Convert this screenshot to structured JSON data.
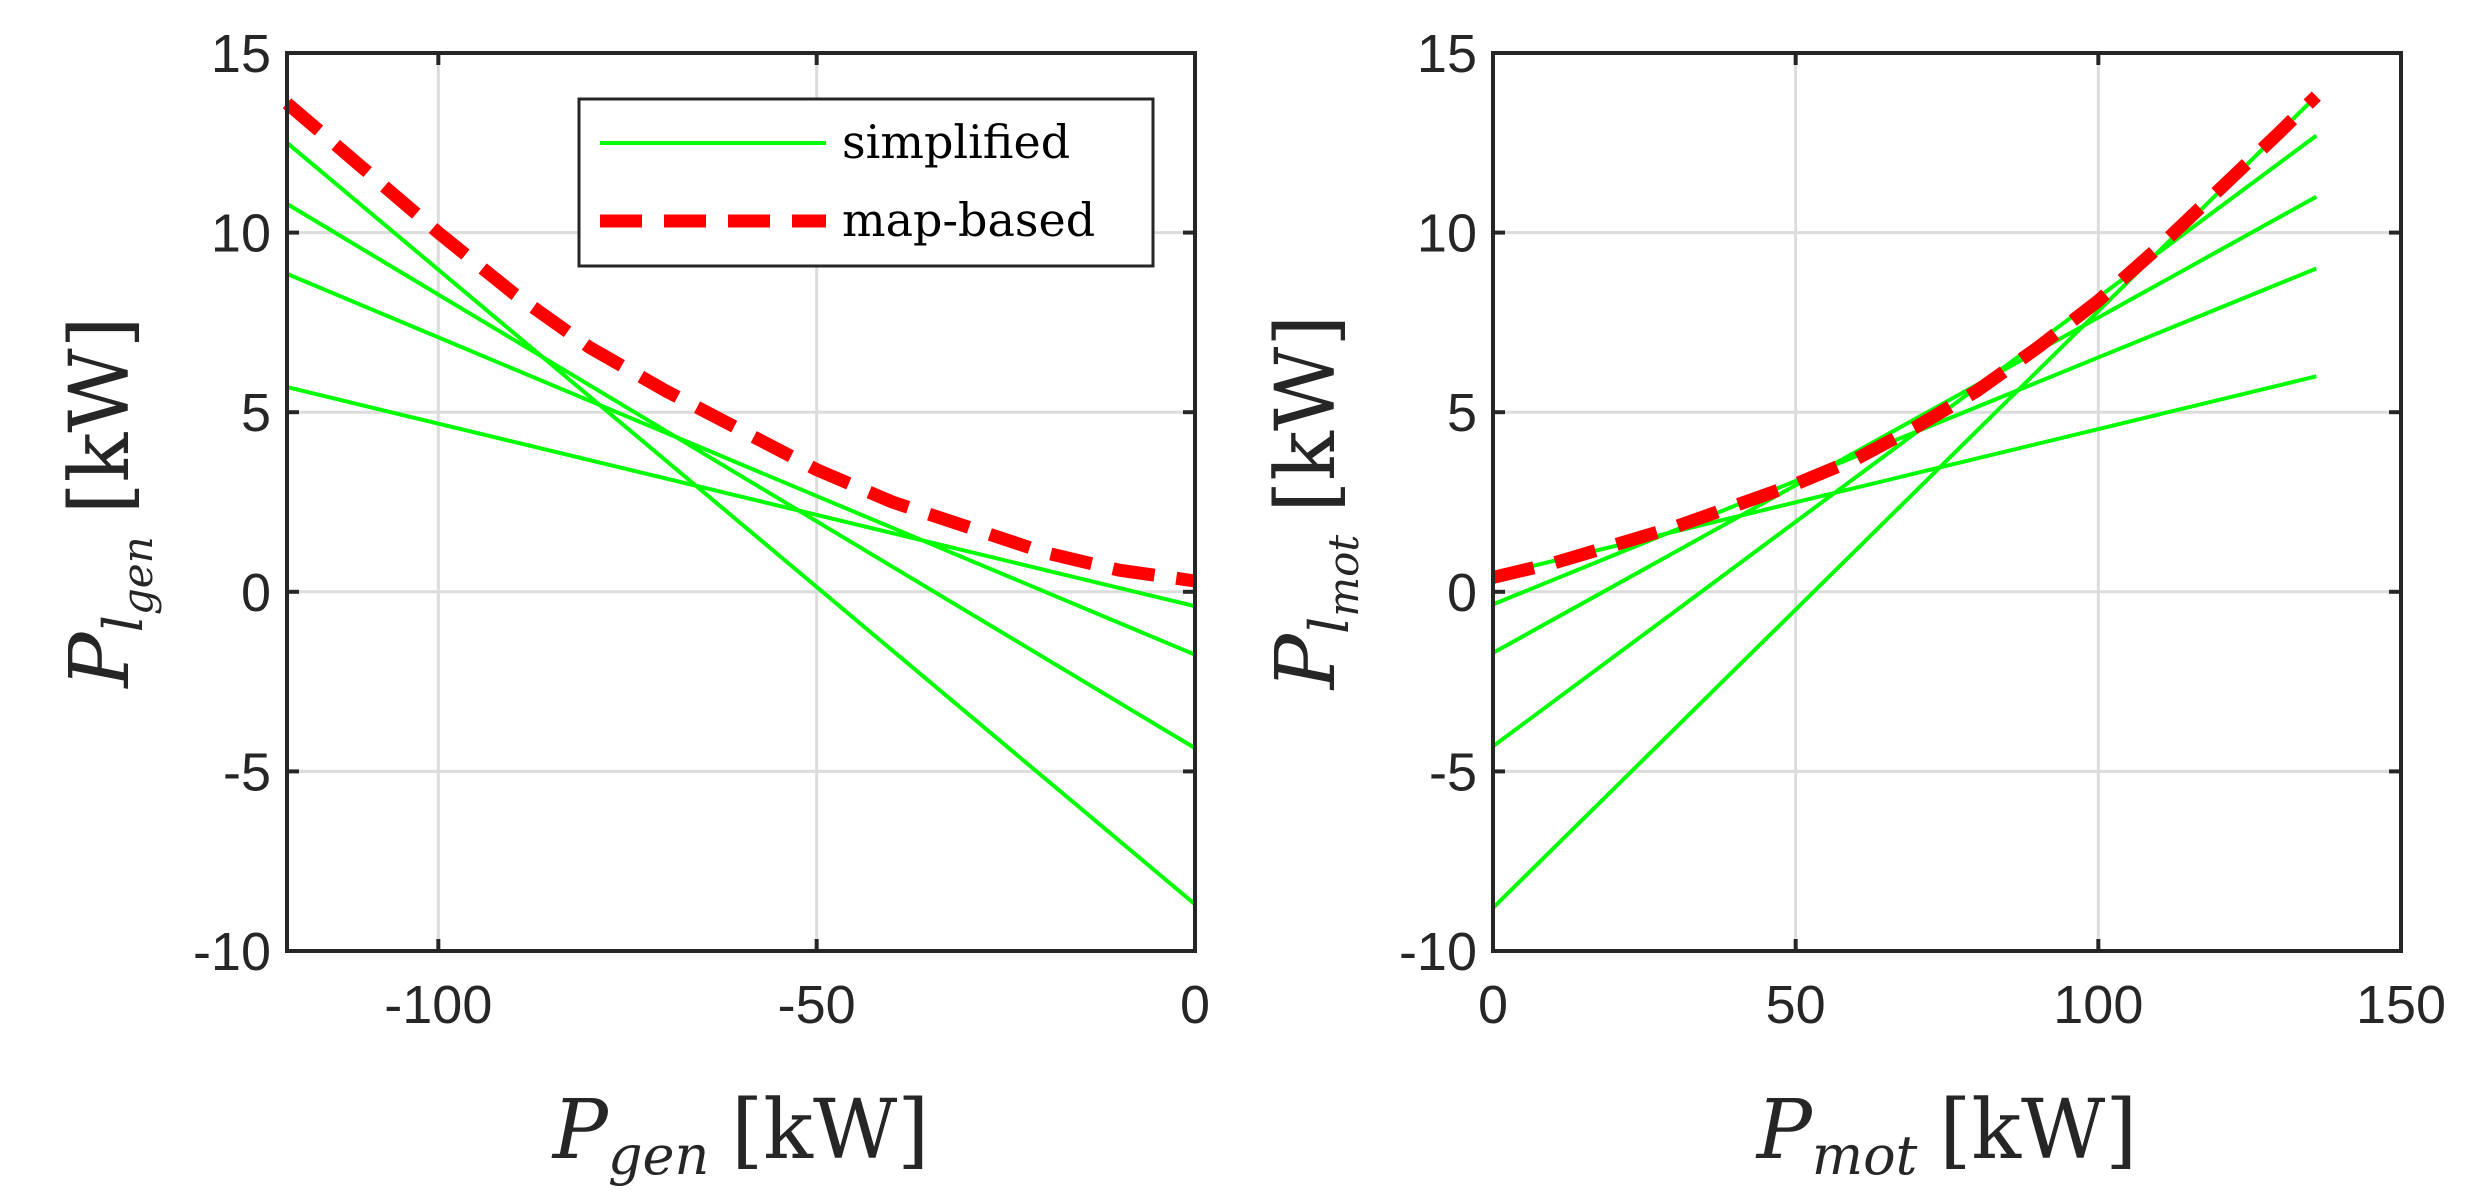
{
  "chart_data": [
    {
      "type": "line",
      "xlabel": {
        "symbol": "P",
        "subscript": "gen",
        "unit": "[kW]"
      },
      "ylabel": {
        "symbol": "P",
        "subscript": "l",
        "subsubscript": "gen",
        "unit": "[kW]"
      },
      "xlim": [
        -120,
        0
      ],
      "ylim": [
        -10,
        15
      ],
      "xticks": [
        -100,
        -50,
        0
      ],
      "xtick_labels": [
        "-100",
        "-50",
        "0"
      ],
      "yticks": [
        -10,
        -5,
        0,
        5,
        10,
        15
      ],
      "ytick_labels": [
        "-10",
        "-5",
        "0",
        "5",
        "10",
        "15"
      ],
      "grid": true,
      "legend": {
        "placement": "top-right",
        "entries": [
          {
            "label": "simplified",
            "color": "#00ff00",
            "style": "solid"
          },
          {
            "label": "map-based",
            "color": "#ff0000",
            "style": "dashed"
          }
        ]
      },
      "series": [
        {
          "name": "simplified",
          "color": "#00ff00",
          "style": "solid",
          "x": [
            -120,
            0
          ],
          "y": [
            12.5,
            -8.7
          ]
        },
        {
          "name": "simplified",
          "color": "#00ff00",
          "style": "solid",
          "x": [
            -120,
            0
          ],
          "y": [
            10.8,
            -4.35
          ]
        },
        {
          "name": "simplified",
          "color": "#00ff00",
          "style": "solid",
          "x": [
            -120,
            0
          ],
          "y": [
            8.85,
            -1.75
          ]
        },
        {
          "name": "simplified",
          "color": "#00ff00",
          "style": "solid",
          "x": [
            -120,
            0
          ],
          "y": [
            5.7,
            -0.4
          ]
        },
        {
          "name": "map-based",
          "color": "#ff0000",
          "style": "dashed",
          "x": [
            -120,
            -110,
            -100,
            -90,
            -80,
            -70,
            -60,
            -50,
            -40,
            -30,
            -20,
            -10,
            0
          ],
          "y": [
            13.6,
            11.8,
            10.0,
            8.3,
            6.8,
            5.6,
            4.5,
            3.4,
            2.5,
            1.8,
            1.1,
            0.6,
            0.3
          ]
        }
      ]
    },
    {
      "type": "line",
      "xlabel": {
        "symbol": "P",
        "subscript": "mot",
        "unit": "[kW]"
      },
      "ylabel": {
        "symbol": "P",
        "subscript": "l",
        "subsubscript": "mot",
        "unit": "[kW]"
      },
      "xlim": [
        0,
        150
      ],
      "ylim": [
        -10,
        15
      ],
      "xticks": [
        0,
        50,
        100,
        150
      ],
      "xtick_labels": [
        "0",
        "50",
        "100",
        "150"
      ],
      "yticks": [
        -10,
        -5,
        0,
        5,
        10,
        15
      ],
      "ytick_labels": [
        "-10",
        "-5",
        "0",
        "5",
        "10",
        "15"
      ],
      "grid": true,
      "series": [
        {
          "name": "simplified",
          "color": "#00ff00",
          "style": "solid",
          "x": [
            0,
            136
          ],
          "y": [
            -8.8,
            13.8
          ]
        },
        {
          "name": "simplified",
          "color": "#00ff00",
          "style": "solid",
          "x": [
            0,
            136
          ],
          "y": [
            -4.3,
            12.7
          ]
        },
        {
          "name": "simplified",
          "color": "#00ff00",
          "style": "solid",
          "x": [
            0,
            136
          ],
          "y": [
            -1.7,
            11.0
          ]
        },
        {
          "name": "simplified",
          "color": "#00ff00",
          "style": "solid",
          "x": [
            0,
            136
          ],
          "y": [
            -0.35,
            9.0
          ]
        },
        {
          "name": "simplified",
          "color": "#00ff00",
          "style": "solid",
          "x": [
            0,
            136
          ],
          "y": [
            0.45,
            6.0
          ]
        },
        {
          "name": "map-based",
          "color": "#ff0000",
          "style": "dashed",
          "x": [
            0,
            10,
            20,
            30,
            40,
            50,
            60,
            70,
            80,
            90,
            100,
            110,
            120,
            130,
            136
          ],
          "y": [
            0.4,
            0.8,
            1.3,
            1.8,
            2.4,
            3.0,
            3.7,
            4.6,
            5.6,
            6.8,
            8.1,
            9.6,
            11.2,
            12.8,
            13.8
          ]
        }
      ]
    }
  ]
}
